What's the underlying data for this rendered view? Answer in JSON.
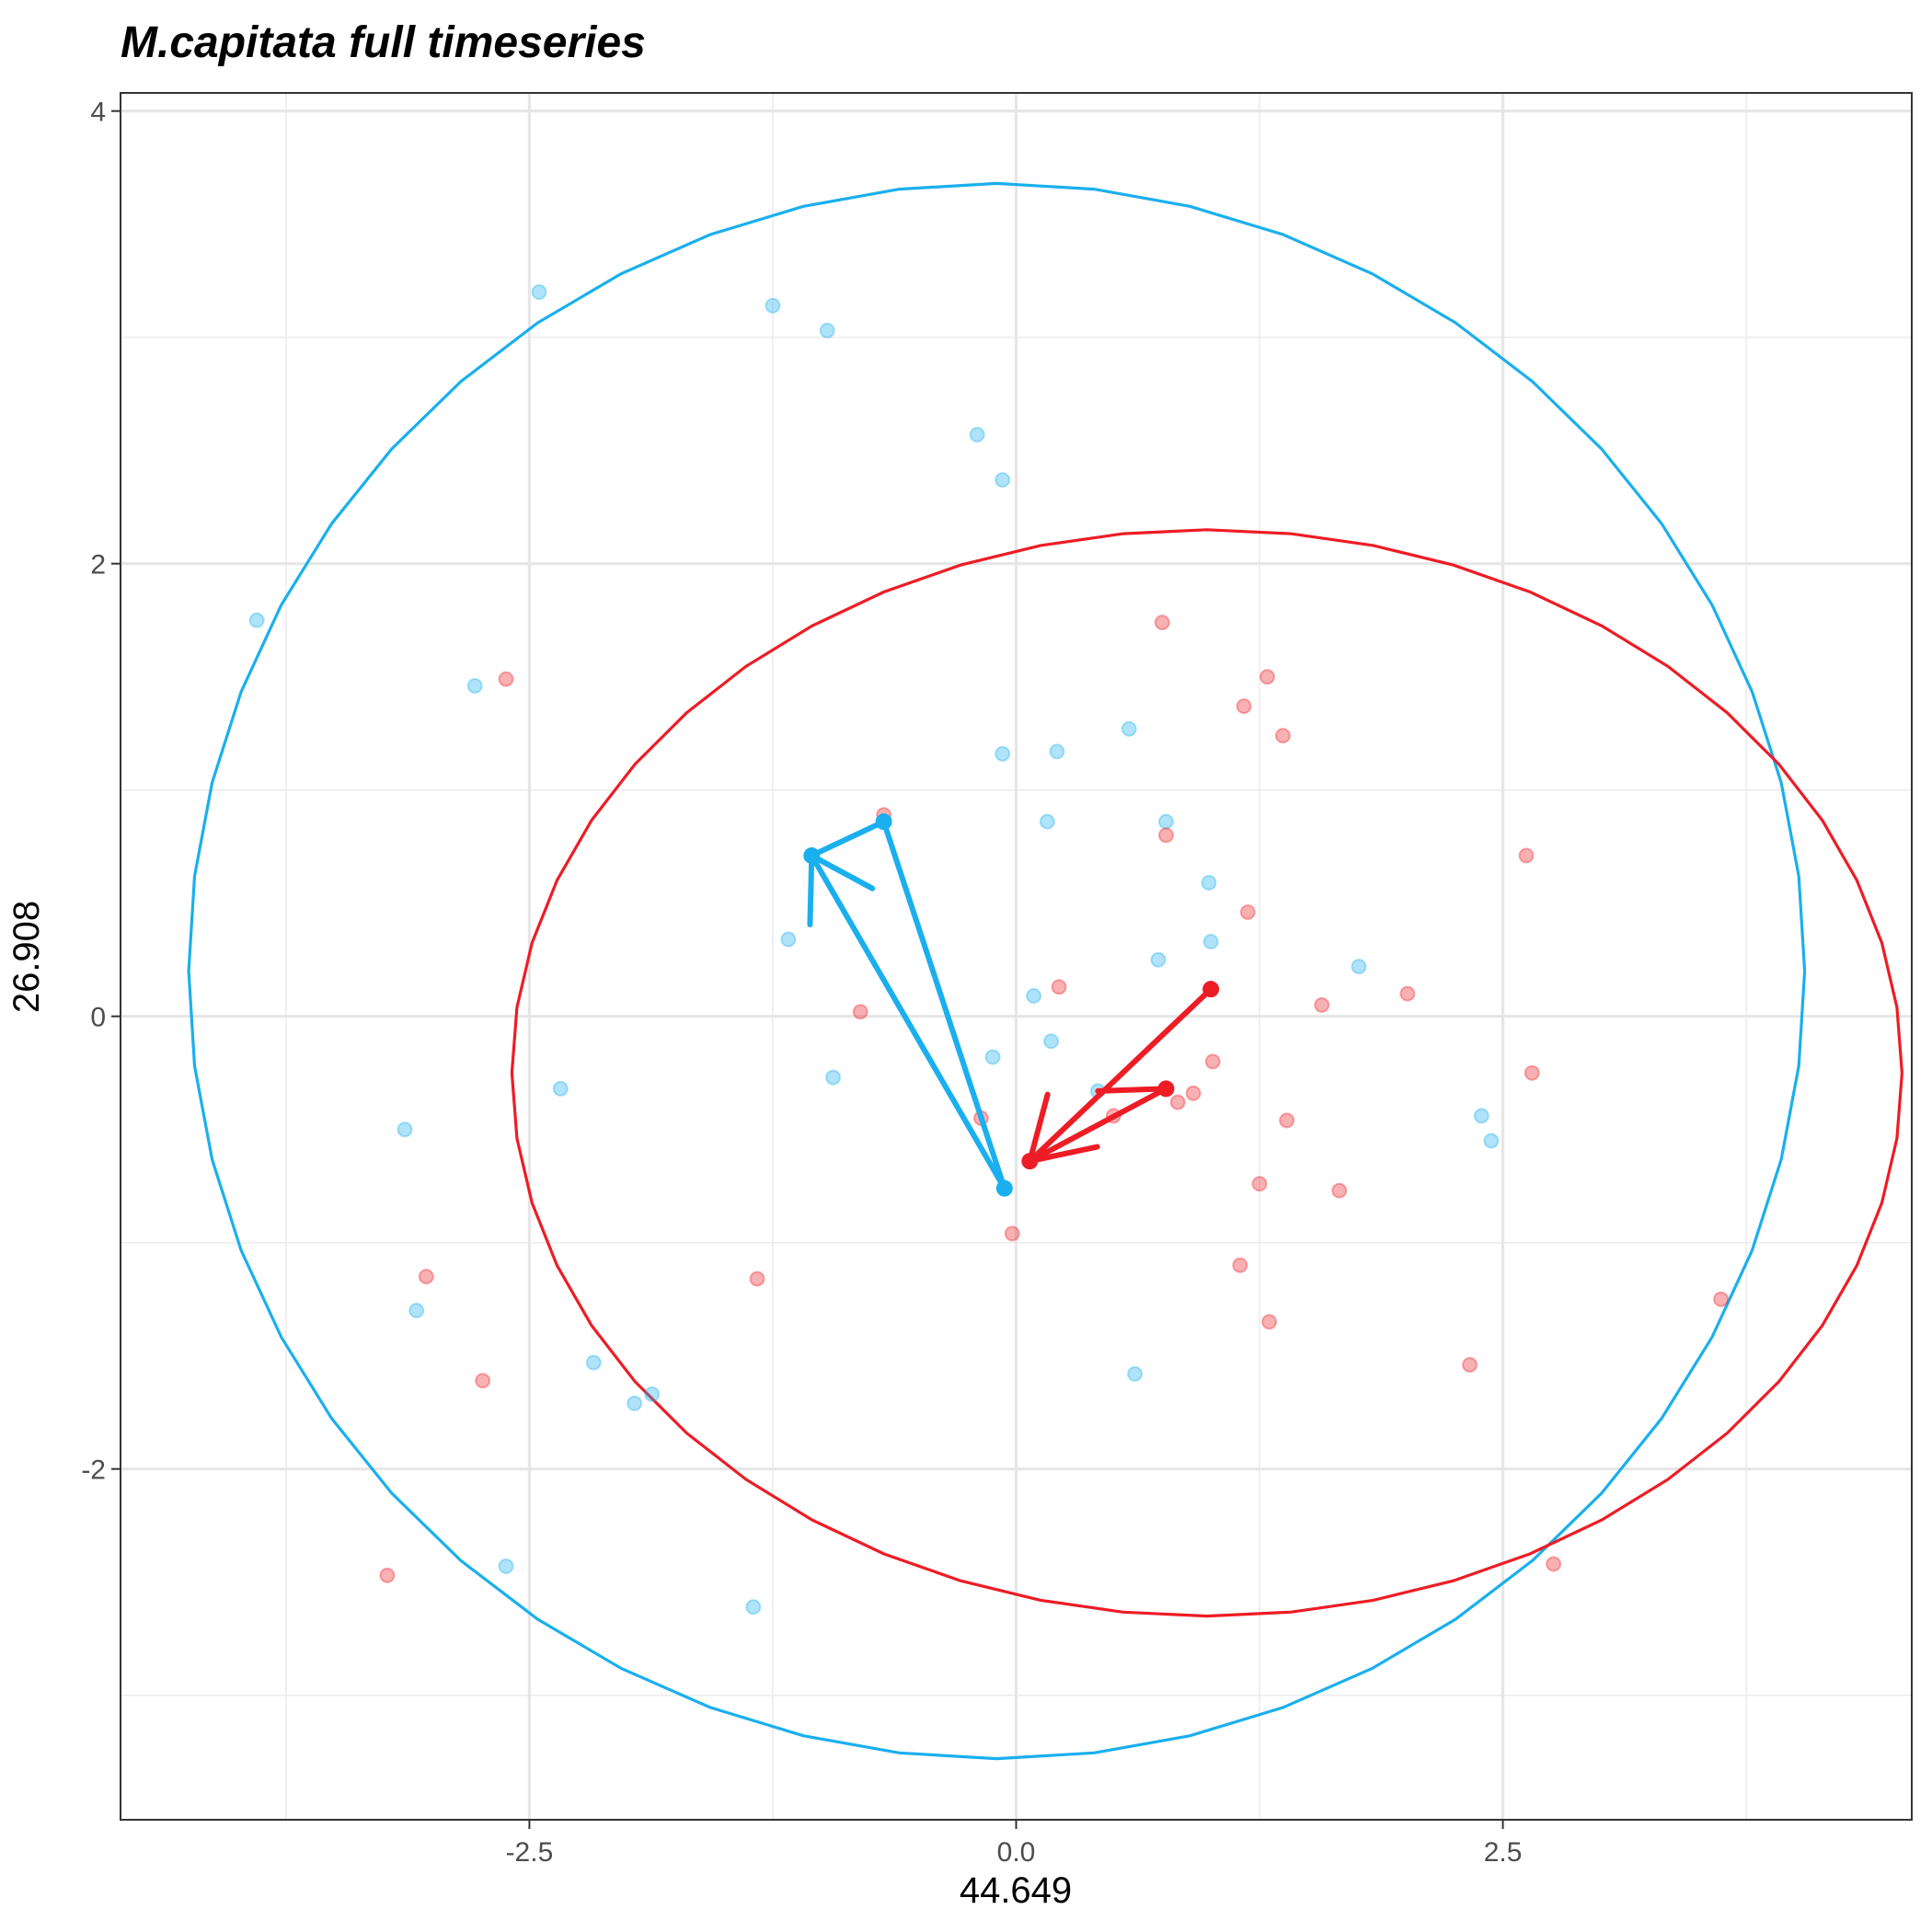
{
  "chart_data": {
    "type": "scatter",
    "title": "M.capitata full timeseries",
    "xlabel": "44.649",
    "ylabel": "26.908",
    "xlim": [
      -4.6,
      4.6
    ],
    "ylim": [
      -3.55,
      4.08
    ],
    "x_ticks": [
      -2.5,
      0.0,
      2.5
    ],
    "x_tick_labels": [
      "-2.5",
      "0.0",
      "2.5"
    ],
    "y_ticks": [
      -2,
      0,
      2,
      4
    ],
    "y_tick_labels": [
      "-2",
      "0",
      "2",
      "4"
    ],
    "x_minor": [
      -3.75,
      -1.25,
      1.25,
      3.75
    ],
    "y_minor": [
      -3,
      -1,
      1,
      3
    ],
    "grid": true,
    "legend": "none",
    "series": [
      {
        "color": "#1AAFEE",
        "points": [
          [
            -3.9,
            1.75
          ],
          [
            -2.45,
            3.2
          ],
          [
            -1.25,
            3.14
          ],
          [
            -0.97,
            3.03
          ],
          [
            -0.2,
            2.57
          ],
          [
            -0.07,
            2.37
          ],
          [
            -2.78,
            1.46
          ],
          [
            -0.07,
            1.16
          ],
          [
            0.21,
            1.17
          ],
          [
            0.58,
            1.27
          ],
          [
            0.16,
            0.86
          ],
          [
            0.77,
            0.86
          ],
          [
            0.99,
            0.59
          ],
          [
            -1.17,
            0.34
          ],
          [
            1.0,
            0.33
          ],
          [
            0.73,
            0.25
          ],
          [
            1.76,
            0.22
          ],
          [
            0.09,
            0.09
          ],
          [
            0.18,
            -0.11
          ],
          [
            -0.12,
            -0.18
          ],
          [
            -2.34,
            -0.32
          ],
          [
            -0.94,
            -0.27
          ],
          [
            0.42,
            -0.33
          ],
          [
            -3.14,
            -0.5
          ],
          [
            2.39,
            -0.44
          ],
          [
            2.44,
            -0.55
          ],
          [
            -3.08,
            -1.3
          ],
          [
            -2.17,
            -1.53
          ],
          [
            -1.96,
            -1.71
          ],
          [
            -1.87,
            -1.67
          ],
          [
            0.61,
            -1.58
          ],
          [
            -2.62,
            -2.43
          ],
          [
            -1.35,
            -2.61
          ]
        ],
        "ellipse": {
          "cx": -0.1,
          "cy": 0.2,
          "rx": 4.15,
          "ry": 3.48
        },
        "trajectory": [
          [
            -0.06,
            -0.76
          ],
          [
            -1.05,
            0.71
          ],
          [
            -0.68,
            0.86
          ],
          [
            -0.06,
            -0.76
          ]
        ]
      },
      {
        "color": "#EE1C25",
        "points": [
          [
            -2.62,
            1.49
          ],
          [
            0.75,
            1.74
          ],
          [
            1.29,
            1.5
          ],
          [
            1.17,
            1.37
          ],
          [
            1.37,
            1.24
          ],
          [
            -0.68,
            0.89
          ],
          [
            0.77,
            0.8
          ],
          [
            2.62,
            0.71
          ],
          [
            1.19,
            0.46
          ],
          [
            0.22,
            0.13
          ],
          [
            2.01,
            0.1
          ],
          [
            1.57,
            0.05
          ],
          [
            -0.8,
            0.02
          ],
          [
            1.01,
            -0.2
          ],
          [
            2.65,
            -0.25
          ],
          [
            0.91,
            -0.34
          ],
          [
            0.83,
            -0.38
          ],
          [
            0.5,
            -0.44
          ],
          [
            -0.18,
            -0.45
          ],
          [
            1.39,
            -0.46
          ],
          [
            1.25,
            -0.74
          ],
          [
            1.66,
            -0.77
          ],
          [
            -0.02,
            -0.96
          ],
          [
            -3.03,
            -1.15
          ],
          [
            -1.33,
            -1.16
          ],
          [
            1.15,
            -1.1
          ],
          [
            1.3,
            -1.35
          ],
          [
            3.62,
            -1.25
          ],
          [
            -2.74,
            -1.61
          ],
          [
            2.33,
            -1.54
          ],
          [
            2.76,
            -2.42
          ],
          [
            -3.23,
            -2.47
          ]
        ],
        "ellipse": {
          "cx": 0.98,
          "cy": -0.25,
          "rx": 3.57,
          "ry": 2.4
        },
        "trajectory": [
          [
            1.0,
            0.12
          ],
          [
            0.07,
            -0.64
          ],
          [
            0.77,
            -0.32
          ],
          [
            0.42,
            -0.33
          ]
        ]
      }
    ]
  }
}
